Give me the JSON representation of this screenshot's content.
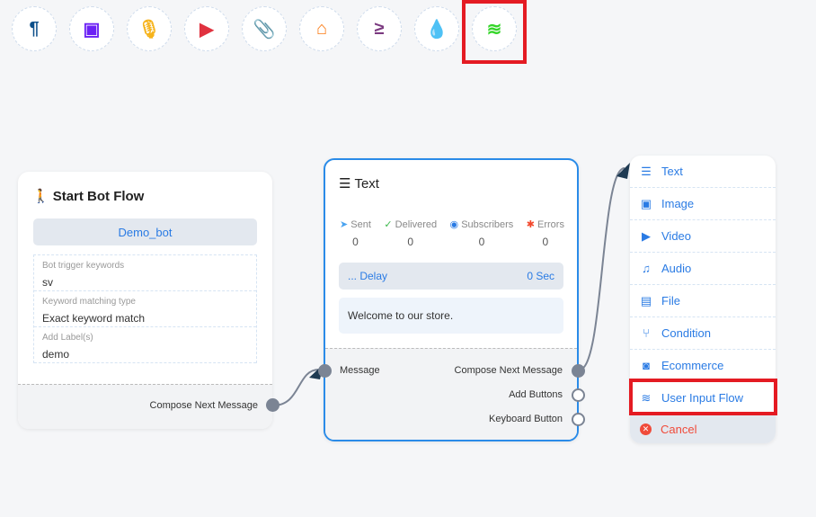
{
  "toolbar": [
    {
      "icon": "paragraph-icon",
      "glyph": "¶",
      "color": "#0c4f8a"
    },
    {
      "icon": "image-icon",
      "glyph": "▣",
      "color": "#6b21f5"
    },
    {
      "icon": "microphone-icon",
      "glyph": "🎙",
      "color": "#f6b31b"
    },
    {
      "icon": "youtube-icon",
      "glyph": "▶",
      "color": "#e0323f"
    },
    {
      "icon": "paperclip-icon",
      "glyph": "📎",
      "color": "#1e9b3c"
    },
    {
      "icon": "store-icon",
      "glyph": "⌂",
      "color": "#fb7a13"
    },
    {
      "icon": "greater-equal-icon",
      "glyph": "≥",
      "color": "#7b3a80"
    },
    {
      "icon": "drop-icon",
      "glyph": "💧",
      "color": "#d0103a"
    },
    {
      "icon": "stack-icon",
      "glyph": "≋",
      "color": "#35d52a"
    }
  ],
  "start": {
    "title": "Start Bot Flow",
    "bot": "Demo_bot",
    "fields": [
      {
        "label": "Bot trigger keywords",
        "value": "sv"
      },
      {
        "label": "Keyword matching type",
        "value": "Exact keyword match"
      },
      {
        "label": "Add Label(s)",
        "value": "demo"
      }
    ],
    "output": "Compose Next Message"
  },
  "text": {
    "title": "Text",
    "stats": [
      {
        "label": "Sent",
        "value": "0",
        "icon": "send-icon",
        "color": "#4aa3f0"
      },
      {
        "label": "Delivered",
        "value": "0",
        "icon": "check-circle-icon",
        "color": "#3db94c"
      },
      {
        "label": "Subscribers",
        "value": "0",
        "icon": "user-circle-icon",
        "color": "#2a7be4"
      },
      {
        "label": "Errors",
        "value": "0",
        "icon": "bug-icon",
        "color": "#f2482c"
      }
    ],
    "delay_label": "... Delay",
    "delay_value": "0 Sec",
    "message": "Welcome to our store.",
    "input": "Message",
    "outputs": [
      "Compose Next Message",
      "Add Buttons",
      "Keyboard Button"
    ]
  },
  "menu": {
    "items": [
      {
        "label": "Text",
        "icon": "list-icon",
        "glyph": "☰"
      },
      {
        "label": "Image",
        "icon": "image-icon",
        "glyph": "▣"
      },
      {
        "label": "Video",
        "icon": "video-icon",
        "glyph": "▶"
      },
      {
        "label": "Audio",
        "icon": "music-icon",
        "glyph": "♫"
      },
      {
        "label": "File",
        "icon": "pdf-file-icon",
        "glyph": "▤"
      },
      {
        "label": "Condition",
        "icon": "branch-icon",
        "glyph": "⑂"
      },
      {
        "label": "Ecommerce",
        "icon": "shopping-bag-icon",
        "glyph": "◙"
      },
      {
        "label": "User Input Flow",
        "icon": "stack-icon",
        "glyph": "≋"
      }
    ],
    "cancel": "Cancel"
  }
}
